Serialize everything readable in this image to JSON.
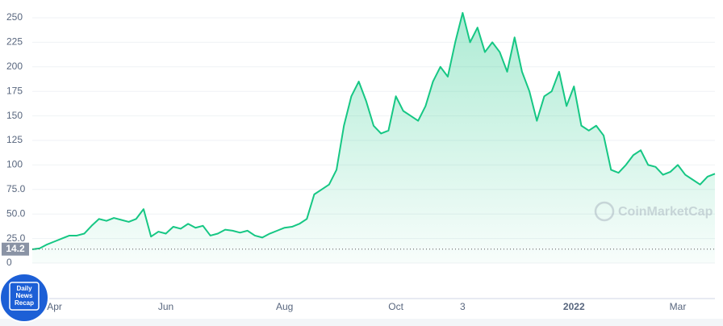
{
  "chart_data": {
    "type": "line",
    "categories": [
      null,
      null,
      null,
      "Apr",
      null,
      null,
      null,
      null,
      null,
      null,
      null,
      null,
      null,
      null,
      null,
      null,
      null,
      null,
      "Jun",
      null,
      null,
      null,
      null,
      null,
      null,
      null,
      null,
      null,
      null,
      null,
      null,
      null,
      null,
      null,
      "Aug",
      null,
      null,
      null,
      null,
      null,
      null,
      null,
      null,
      null,
      null,
      null,
      null,
      null,
      null,
      "Oct",
      null,
      null,
      null,
      null,
      null,
      null,
      null,
      null,
      "3",
      null,
      null,
      null,
      null,
      null,
      null,
      null,
      null,
      null,
      null,
      null,
      null,
      null,
      null,
      "2022",
      null,
      null,
      null,
      null,
      null,
      null,
      null,
      null,
      null,
      null,
      null,
      null,
      null,
      "Mar",
      null,
      null,
      null,
      null,
      null
    ],
    "series": [
      {
        "color": "#16c784",
        "values": [
          14,
          15,
          19,
          22,
          25,
          28,
          28,
          30,
          38,
          45,
          43,
          46,
          44,
          42,
          45,
          55,
          27,
          32,
          30,
          37,
          35,
          40,
          36,
          38,
          28,
          30,
          34,
          33,
          31,
          33,
          28,
          26,
          30,
          33,
          36,
          37,
          40,
          45,
          70,
          75,
          80,
          95,
          140,
          170,
          185,
          165,
          140,
          132,
          135,
          170,
          155,
          150,
          145,
          160,
          185,
          200,
          190,
          225,
          255,
          225,
          240,
          215,
          225,
          215,
          195,
          230,
          195,
          175,
          145,
          170,
          175,
          195,
          160,
          180,
          140,
          135,
          140,
          130,
          95,
          92,
          100,
          110,
          115,
          100,
          98,
          90,
          93,
          100,
          90,
          85,
          80,
          88,
          91
        ]
      }
    ],
    "ylim": [
      0,
      250
    ],
    "yticks": [
      0,
      {
        "value": 25,
        "label": "25.0"
      },
      {
        "value": 50,
        "label": "50.0"
      },
      {
        "value": 75,
        "label": "75.0"
      },
      100,
      125,
      150,
      175,
      200,
      225,
      250
    ],
    "grid": true,
    "reference_line": 14.2,
    "watermark": "CoinMarketCap",
    "logo": [
      "Daily",
      "News",
      "Recap"
    ]
  }
}
